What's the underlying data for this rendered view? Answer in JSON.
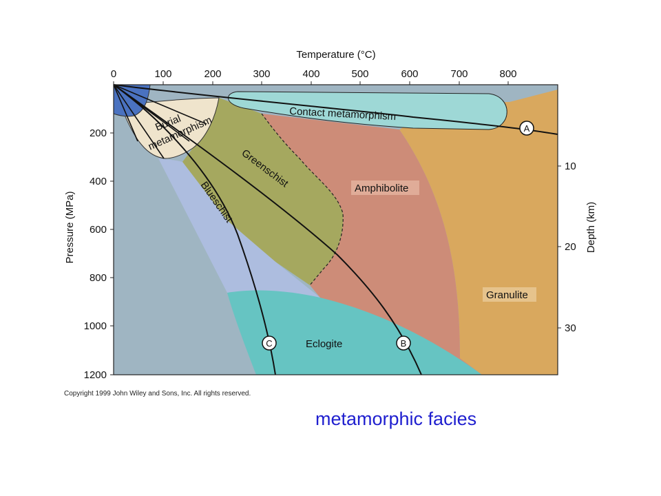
{
  "diagram": {
    "x_axis": {
      "title": "Temperature (°C)",
      "ticks": [
        "0",
        "100",
        "200",
        "300",
        "400",
        "500",
        "600",
        "700",
        "800"
      ]
    },
    "y_axis_left": {
      "title": "Pressure (MPa)",
      "ticks": [
        "200",
        "400",
        "600",
        "800",
        "1000",
        "1200"
      ]
    },
    "y_axis_right": {
      "title": "Depth (km)",
      "ticks": [
        "10",
        "20",
        "30"
      ]
    },
    "facies": {
      "burial_1": "Burial",
      "burial_2": "metamorphism",
      "contact": "Contact metamorphism",
      "greenschist": "Greenschist",
      "blueschist": "Blueschist",
      "amphibolite": "Amphibolite",
      "granulite": "Granulite",
      "eclogite": "Eclogite"
    },
    "paths": {
      "a": "A",
      "b": "B",
      "c": "C"
    },
    "colors": {
      "background": "#9fb5c2",
      "zeolite": "#4a72c0",
      "burial": "#efe4cc",
      "contact": "#9ed8d6",
      "greenschist": "#a5a85f",
      "blueschist": "#adbddf",
      "amphibolite": "#cd8c78",
      "granulite": "#d9a85e",
      "eclogite": "#66c4c2"
    }
  },
  "copyright": "Copyright 1999 John Wiley and Sons, Inc. All rights reserved.",
  "caption": "metamorphic facies"
}
